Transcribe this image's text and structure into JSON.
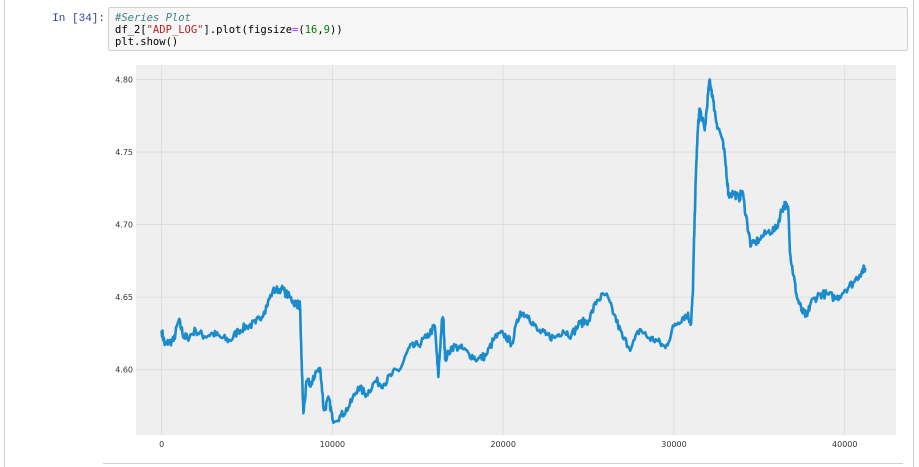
{
  "cell": {
    "prompt": "In [34]:",
    "code": {
      "comment": "#Series Plot",
      "line2_prefix": "df_2[",
      "line2_string": "\"ADP_LOG\"",
      "line2_mid": "].plot(figsize",
      "line2_eq": "=",
      "line2_open": "(",
      "line2_n1": "16",
      "line2_comma": ",",
      "line2_n2": "9",
      "line2_close": "))",
      "line3": "plt.show()"
    }
  },
  "colors": {
    "line": "#1a8ccd",
    "plot_background": "#efefef",
    "grid": "#ffffff"
  },
  "chart_data": {
    "type": "line",
    "title": "",
    "xlabel": "",
    "ylabel": "",
    "xlim": [
      -1500,
      43000
    ],
    "ylim": [
      4.555,
      4.81
    ],
    "xticks": [
      0,
      10000,
      20000,
      30000,
      40000
    ],
    "xtick_labels": [
      "0",
      "10000",
      "20000",
      "30000",
      "40000"
    ],
    "yticks": [
      4.6,
      4.65,
      4.7,
      4.75,
      4.8
    ],
    "ytick_labels": [
      "4.60",
      "4.65",
      "4.70",
      "4.75",
      "4.80"
    ],
    "grid": true,
    "legend": "none",
    "x": [
      0,
      200,
      400,
      700,
      1000,
      1300,
      1500,
      2000,
      2500,
      3000,
      3500,
      4000,
      4500,
      5000,
      5500,
      6000,
      6500,
      7000,
      7500,
      7800,
      8000,
      8100,
      8200,
      8300,
      8500,
      8800,
      9000,
      9300,
      9500,
      9800,
      10000,
      10500,
      11000,
      11500,
      12000,
      12500,
      13000,
      13500,
      14000,
      14500,
      15000,
      15500,
      16000,
      16200,
      16400,
      16500,
      16600,
      17000,
      17500,
      18000,
      18500,
      19000,
      19500,
      20000,
      20500,
      21000,
      21500,
      22000,
      22500,
      23000,
      23500,
      24000,
      24500,
      25000,
      25500,
      26000,
      26500,
      27000,
      27500,
      28000,
      28500,
      29000,
      29500,
      30000,
      30500,
      30800,
      31000,
      31100,
      31200,
      31300,
      31400,
      31500,
      31800,
      32000,
      32100,
      32300,
      32500,
      32800,
      33000,
      33200,
      33500,
      33800,
      34000,
      34300,
      34500,
      35000,
      35500,
      36000,
      36300,
      36500,
      36700,
      36800,
      37000,
      37200,
      37500,
      37800,
      38000,
      38500,
      39000,
      39500,
      40000,
      40500,
      41000,
      41200
    ],
    "values": [
      4.627,
      4.617,
      4.619,
      4.62,
      4.634,
      4.623,
      4.622,
      4.627,
      4.623,
      4.625,
      4.622,
      4.62,
      4.627,
      4.63,
      4.632,
      4.64,
      4.654,
      4.656,
      4.65,
      4.646,
      4.645,
      4.644,
      4.605,
      4.57,
      4.592,
      4.59,
      4.598,
      4.6,
      4.572,
      4.58,
      4.566,
      4.568,
      4.575,
      4.588,
      4.583,
      4.592,
      4.59,
      4.597,
      4.601,
      4.615,
      4.617,
      4.622,
      4.63,
      4.595,
      4.632,
      4.635,
      4.607,
      4.616,
      4.615,
      4.611,
      4.607,
      4.61,
      4.622,
      4.625,
      4.618,
      4.64,
      4.637,
      4.627,
      4.624,
      4.622,
      4.627,
      4.624,
      4.632,
      4.634,
      4.648,
      4.652,
      4.638,
      4.622,
      4.615,
      4.628,
      4.622,
      4.62,
      4.615,
      4.63,
      4.636,
      4.638,
      4.632,
      4.652,
      4.7,
      4.74,
      4.766,
      4.78,
      4.765,
      4.79,
      4.8,
      4.785,
      4.77,
      4.76,
      4.745,
      4.72,
      4.722,
      4.718,
      4.723,
      4.7,
      4.685,
      4.69,
      4.695,
      4.697,
      4.71,
      4.714,
      4.71,
      4.68,
      4.665,
      4.65,
      4.64,
      4.637,
      4.646,
      4.652,
      4.652,
      4.649,
      4.655,
      4.66,
      4.668,
      4.67
    ]
  }
}
